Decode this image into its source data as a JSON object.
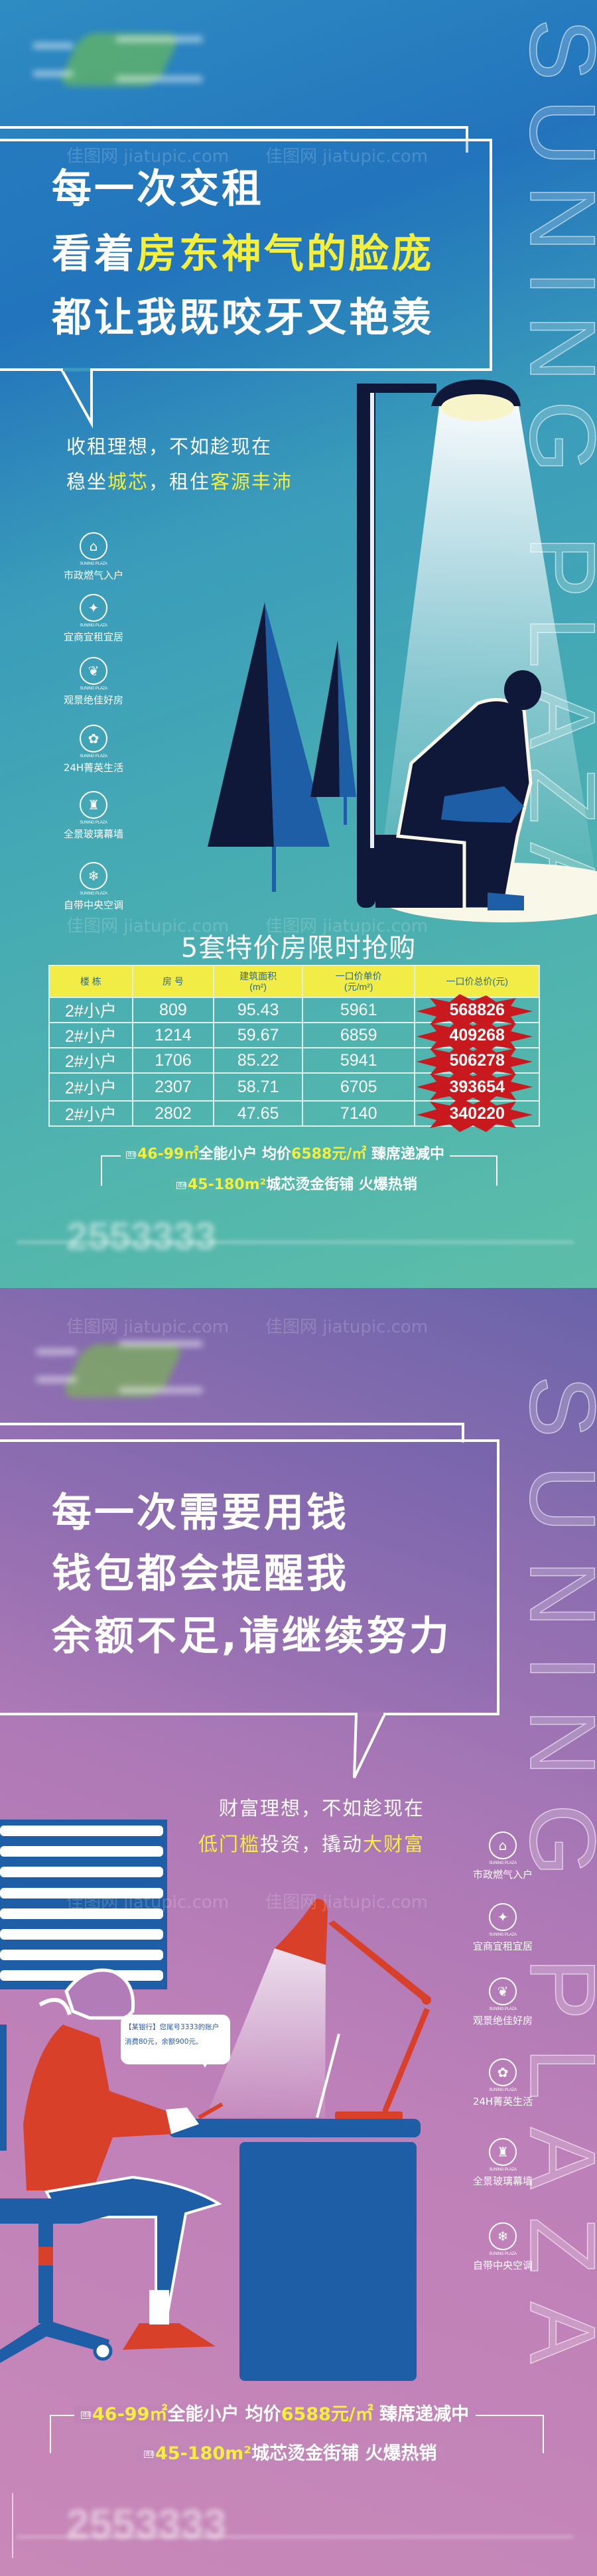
{
  "brand_vertical": "SUNING PLAZA",
  "brand_small": "SUNING PLAZA",
  "watermark": "佳图网 jiatupic.com",
  "colors": {
    "highlight": "#f4ee3c",
    "poster1_bg": "#2273bc",
    "poster2_bg": "#ab78b6",
    "table_header": "#f2ec46",
    "price_burst": "#c81a1e"
  },
  "features": [
    {
      "icon": "house-stars-icon",
      "label": "市政燃气入户"
    },
    {
      "icon": "stars-circle-icon",
      "label": "宜商宜租宜居"
    },
    {
      "icon": "tree-icon",
      "label": "观景绝佳好房"
    },
    {
      "icon": "flower-icon",
      "label": "24H菁英生活"
    },
    {
      "icon": "tower-icon",
      "label": "全景玻璃幕墙"
    },
    {
      "icon": "air-conditioner-icon",
      "label": "自带中央空调"
    }
  ],
  "poster1": {
    "headline": {
      "line1": "每一次交租",
      "line2_a": "看着",
      "line2_b": "房东神气的脸庞",
      "line3": "都让我既咬牙又艳羡"
    },
    "sub": {
      "line1": "收租理想，不如趁现在",
      "line2_a": "稳坐",
      "line2_b": "城芯",
      "line2_c": "，租住",
      "line2_d": "客源丰沛"
    },
    "table_title": "5套特价房限时抢购",
    "table": {
      "headers": [
        "楼 栋",
        "房 号",
        "建筑面积\n(m²)",
        "一口价单价\n(元/m²)",
        "一口价总价(元)"
      ],
      "rows": [
        [
          "2#小户",
          "809",
          "95.43",
          "5961",
          "568826"
        ],
        [
          "2#小户",
          "1214",
          "59.67",
          "6859",
          "409268"
        ],
        [
          "2#小户",
          "1706",
          "85.22",
          "5941",
          "506278"
        ],
        [
          "2#小户",
          "2307",
          "58.71",
          "6705",
          "393654"
        ],
        [
          "2#小户",
          "2802",
          "47.65",
          "7140",
          "340220"
        ]
      ]
    }
  },
  "promo": {
    "tag": "建面",
    "l1_a": "46-99㎡",
    "l1_b": "全能小户 均价",
    "l1_c": "6588元/㎡",
    "l1_d": " 臻席递减中",
    "l2_a": "45-180m²",
    "l2_b": "城芯烫金街铺 火爆热销"
  },
  "phone_blurred": "2553333",
  "poster2": {
    "headline": {
      "line1": "每一次需要用钱",
      "line2": "钱包都会提醒我",
      "line3": "余额不足,请继续努力"
    },
    "sub": {
      "line1": "财富理想，不如趁现在",
      "line2_a": "低门槛",
      "line2_b": "投资，撬动",
      "line2_c": "大财富"
    },
    "message": {
      "line1": "【某银行】您尾号3333的账户",
      "line2": "消费80元，余额900元。"
    }
  }
}
